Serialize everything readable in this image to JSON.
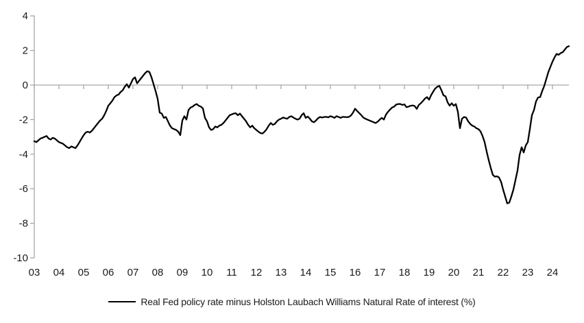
{
  "chart_data": {
    "type": "line",
    "title": "",
    "legend_label": "Real Fed policy rate minus Holston Laubach Williams Natural Rate of interest (%)",
    "x_start_year": 2003,
    "points_per_year": 12,
    "x_tick_labels": [
      "03",
      "04",
      "05",
      "06",
      "07",
      "08",
      "09",
      "10",
      "11",
      "12",
      "13",
      "14",
      "15",
      "16",
      "17",
      "18",
      "19",
      "20",
      "21",
      "22",
      "23",
      "24"
    ],
    "y_tick_labels": [
      "4",
      "2",
      "0",
      "-2",
      "-4",
      "-6",
      "-8",
      "-10"
    ],
    "ylim": [
      -10,
      4
    ],
    "y_tick_step": 2,
    "grid": "zero-line-only",
    "legend_position": "bottom-center",
    "line_color": "#000000",
    "axis_color": "#a6a6a6",
    "values": [
      -3.25,
      -3.3,
      -3.2,
      -3.1,
      -3.05,
      -3.0,
      -2.95,
      -3.1,
      -3.15,
      -3.05,
      -3.1,
      -3.2,
      -3.3,
      -3.35,
      -3.4,
      -3.5,
      -3.6,
      -3.65,
      -3.55,
      -3.6,
      -3.65,
      -3.5,
      -3.3,
      -3.1,
      -2.9,
      -2.75,
      -2.7,
      -2.75,
      -2.65,
      -2.5,
      -2.35,
      -2.2,
      -2.05,
      -1.95,
      -1.75,
      -1.5,
      -1.2,
      -1.05,
      -0.9,
      -0.7,
      -0.6,
      -0.55,
      -0.4,
      -0.3,
      -0.1,
      0.05,
      -0.15,
      0.1,
      0.35,
      0.45,
      0.1,
      0.25,
      0.4,
      0.55,
      0.7,
      0.8,
      0.75,
      0.45,
      0.05,
      -0.35,
      -0.8,
      -1.6,
      -1.65,
      -1.9,
      -1.85,
      -2.1,
      -2.35,
      -2.5,
      -2.55,
      -2.6,
      -2.7,
      -2.9,
      -2.05,
      -1.8,
      -2.0,
      -1.45,
      -1.3,
      -1.25,
      -1.15,
      -1.1,
      -1.2,
      -1.25,
      -1.35,
      -1.9,
      -2.1,
      -2.45,
      -2.6,
      -2.55,
      -2.4,
      -2.45,
      -2.35,
      -2.3,
      -2.2,
      -2.05,
      -1.9,
      -1.75,
      -1.7,
      -1.65,
      -1.63,
      -1.75,
      -1.65,
      -1.8,
      -1.95,
      -2.1,
      -2.3,
      -2.45,
      -2.35,
      -2.5,
      -2.6,
      -2.7,
      -2.78,
      -2.8,
      -2.7,
      -2.55,
      -2.35,
      -2.2,
      -2.3,
      -2.25,
      -2.1,
      -2.0,
      -1.95,
      -1.88,
      -1.92,
      -1.95,
      -1.85,
      -1.8,
      -1.88,
      -1.95,
      -2.0,
      -1.95,
      -1.75,
      -1.63,
      -1.9,
      -1.82,
      -1.95,
      -2.1,
      -2.15,
      -2.05,
      -1.92,
      -1.85,
      -1.88,
      -1.85,
      -1.84,
      -1.87,
      -1.8,
      -1.84,
      -1.9,
      -1.8,
      -1.85,
      -1.9,
      -1.84,
      -1.85,
      -1.86,
      -1.84,
      -1.76,
      -1.6,
      -1.37,
      -1.5,
      -1.62,
      -1.74,
      -1.88,
      -1.95,
      -2.0,
      -2.05,
      -2.1,
      -2.15,
      -2.2,
      -2.12,
      -2.0,
      -1.9,
      -2.0,
      -1.72,
      -1.55,
      -1.42,
      -1.3,
      -1.25,
      -1.13,
      -1.1,
      -1.1,
      -1.15,
      -1.12,
      -1.28,
      -1.25,
      -1.2,
      -1.18,
      -1.22,
      -1.38,
      -1.15,
      -1.05,
      -0.92,
      -0.78,
      -0.7,
      -0.85,
      -0.58,
      -0.38,
      -0.2,
      -0.1,
      -0.05,
      -0.3,
      -0.6,
      -0.65,
      -1.0,
      -1.2,
      -1.05,
      -1.2,
      -1.1,
      -1.55,
      -2.5,
      -1.95,
      -1.85,
      -1.88,
      -2.1,
      -2.25,
      -2.35,
      -2.4,
      -2.5,
      -2.55,
      -2.68,
      -2.95,
      -3.3,
      -3.85,
      -4.35,
      -4.8,
      -5.2,
      -5.3,
      -5.28,
      -5.35,
      -5.6,
      -6.05,
      -6.45,
      -6.85,
      -6.8,
      -6.45,
      -6.05,
      -5.5,
      -4.95,
      -4.05,
      -3.6,
      -3.9,
      -3.5,
      -3.3,
      -2.55,
      -1.75,
      -1.45,
      -0.95,
      -0.72,
      -0.7,
      -0.35,
      -0.05,
      0.35,
      0.75,
      1.05,
      1.35,
      1.6,
      1.8,
      1.75,
      1.85,
      1.9,
      2.05,
      2.2,
      2.25
    ]
  }
}
